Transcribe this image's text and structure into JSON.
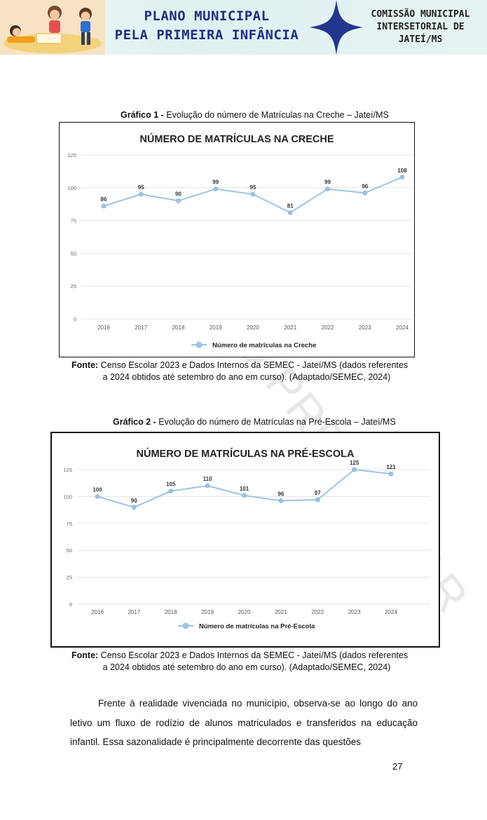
{
  "header": {
    "plan_line1": "PLANO MUNICIPAL",
    "plan_line2": "PELA PRIMEIRA INFÂNCIA",
    "commission_line1": "COMISSÃO MUNICIPAL",
    "commission_line2": "INTERSETORIAL DE",
    "commission_line3": "JATEÍ/MS"
  },
  "watermark": "VERSÃO PRELIMINAR",
  "chart1_caption": {
    "label": "Gráfico 1 -",
    "text": " Evolução do número de Matrículas na Creche – Jateí/MS"
  },
  "chart2_caption": {
    "label": "Gráfico 2 -",
    "text": " Evolução do número de Matrículas na Pré-Escola – Jateí/MS"
  },
  "chart_data": [
    {
      "type": "line",
      "title": "NÚMERO DE MATRÍCULAS NA CRECHE",
      "x": [
        "2016",
        "2017",
        "2018",
        "2019",
        "2020",
        "2021",
        "2022",
        "2023",
        "2024"
      ],
      "series": [
        {
          "name": "Número de matriculas na Creche",
          "values": [
            86,
            95,
            90,
            99,
            95,
            81,
            99,
            96,
            108
          ]
        }
      ],
      "y_ticks": [
        0,
        25,
        50,
        75,
        100,
        125
      ],
      "ylim": [
        0,
        125
      ],
      "grid": true,
      "legend": "bottom",
      "color": "#9dc3e6"
    },
    {
      "type": "line",
      "title": "NÚMERO DE MATRÍCULAS NA PRÉ-ESCOLA",
      "x": [
        "2016",
        "2017",
        "2018",
        "2019",
        "2020",
        "2021",
        "2022",
        "2023",
        "2024"
      ],
      "series": [
        {
          "name": "Número de matrículas na Pré-Escola",
          "values": [
            100,
            90,
            105,
            110,
            101,
            96,
            97,
            125,
            121
          ]
        }
      ],
      "y_ticks": [
        0,
        25,
        50,
        75,
        100,
        125
      ],
      "ylim": [
        0,
        125
      ],
      "grid": true,
      "legend": "bottom",
      "color": "#9dc3e6"
    }
  ],
  "source1": {
    "label": "Fonte:",
    "line1": " Censo Escolar 2023 e Dados Internos da SEMEC - Jateí/MS (dados referentes",
    "line2": "a 2024 obtidos até setembro do ano em curso). (Adaptado/SEMEC, 2024)"
  },
  "source2": {
    "label": "Fonte:",
    "line1": " Censo Escolar 2023 e Dados Internos da SEMEC - Jateí/MS (dados referentes",
    "line2": "a 2024 obtidos até setembro do ano em curso). (Adaptado/SEMEC, 2024)"
  },
  "paragraph": "Frente à realidade vivenciada no município, observa-se ao longo do ano letivo um fluxo de rodízio de alunos matriculados e transferidos na educação infantil. Essa sazonalidade é principalmente decorrente das questões",
  "page_number": "27"
}
